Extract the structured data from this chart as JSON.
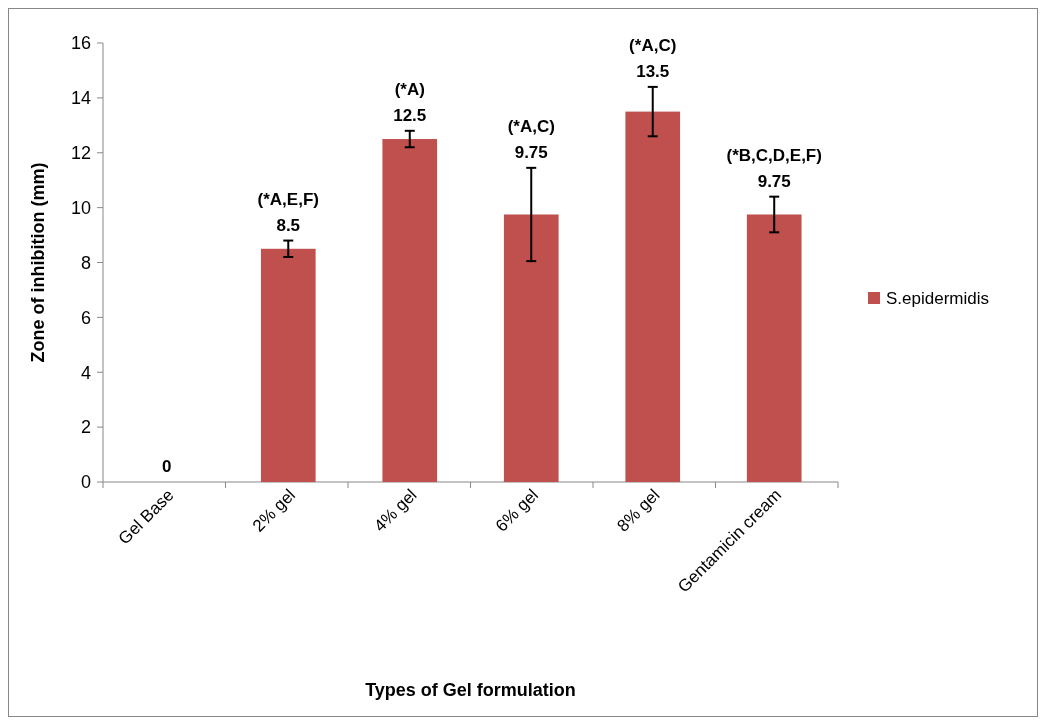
{
  "chart_data": {
    "type": "bar",
    "xlabel": "Types of Gel formulation",
    "ylabel": "Zone of inhibition (mm)",
    "categories": [
      "Gel Base",
      "2% gel",
      "4% gel",
      "6% gel",
      "8% gel",
      "Gentamicin cream"
    ],
    "series": [
      {
        "name": "S.epidermidis",
        "color": "#c0504d",
        "values": [
          0,
          8.5,
          12.5,
          9.75,
          13.5,
          9.75
        ],
        "errors": [
          null,
          0.3,
          0.3,
          1.7,
          0.9,
          0.65
        ]
      }
    ],
    "data_labels": true,
    "annotations": [
      {
        "text": "(*A,E,F)",
        "x": "2% gel",
        "y": 8.8
      },
      {
        "text": "(*A)",
        "x": "4% gel",
        "y": 12.8
      },
      {
        "text": "(*A,C)",
        "x": "6% gel",
        "y": 11.45
      },
      {
        "text": "(*A,C)",
        "x": "8% gel",
        "y": 14.4
      },
      {
        "text": "(*B,C,D,E,F)",
        "x": "Gentamicin cream",
        "y": 10.4
      }
    ],
    "ylim": [
      0,
      16
    ],
    "yticks": [
      0,
      2,
      4,
      6,
      8,
      10,
      12,
      14,
      16
    ],
    "grid": false,
    "legend": "right"
  }
}
